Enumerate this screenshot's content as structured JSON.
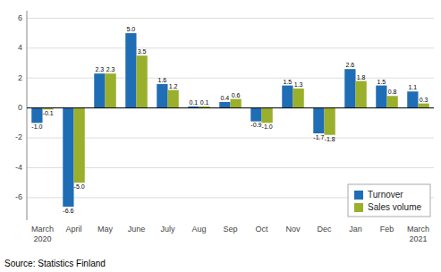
{
  "chart_data": {
    "type": "bar",
    "categories": [
      "March\n2020",
      "April",
      "May",
      "June",
      "July",
      "Aug",
      "Sep",
      "Oct",
      "Nov",
      "Dec",
      "Jan",
      "Feb",
      "March\n2021"
    ],
    "series": [
      {
        "name": "Turnover",
        "color": "#1f6db5",
        "values": [
          -1.0,
          -6.6,
          2.3,
          5.0,
          1.6,
          0.1,
          0.4,
          -0.9,
          1.5,
          -1.7,
          2.6,
          1.5,
          1.1
        ],
        "value_labels": [
          "-1.0",
          "-6.6",
          "2.3",
          "5.0",
          "1.6",
          "0.1",
          "0.4",
          "-0.9",
          "1.5",
          "-1.7",
          "2.6",
          "1.5",
          "1.1"
        ]
      },
      {
        "name": "Sales volume",
        "color": "#9aaf2b",
        "values": [
          -0.1,
          -5.0,
          2.3,
          3.5,
          1.2,
          0.1,
          0.6,
          -1.0,
          1.3,
          -1.8,
          1.8,
          0.8,
          0.3
        ],
        "value_labels": [
          "-0.1",
          "-5.0",
          "2.3",
          "3.5",
          "1.2",
          "0.1",
          "0.6",
          "-1.0",
          "1.3",
          "-1.8",
          "1.8",
          "0.8",
          "0.3"
        ]
      }
    ],
    "ylim": [
      -7.5,
      6.5
    ],
    "yticks": [
      -6,
      -4,
      -2,
      0,
      2,
      4,
      6
    ],
    "grid": true,
    "legend": "lower right",
    "data_labels": true,
    "annotations": [
      "Source: Statistics Finland"
    ]
  }
}
